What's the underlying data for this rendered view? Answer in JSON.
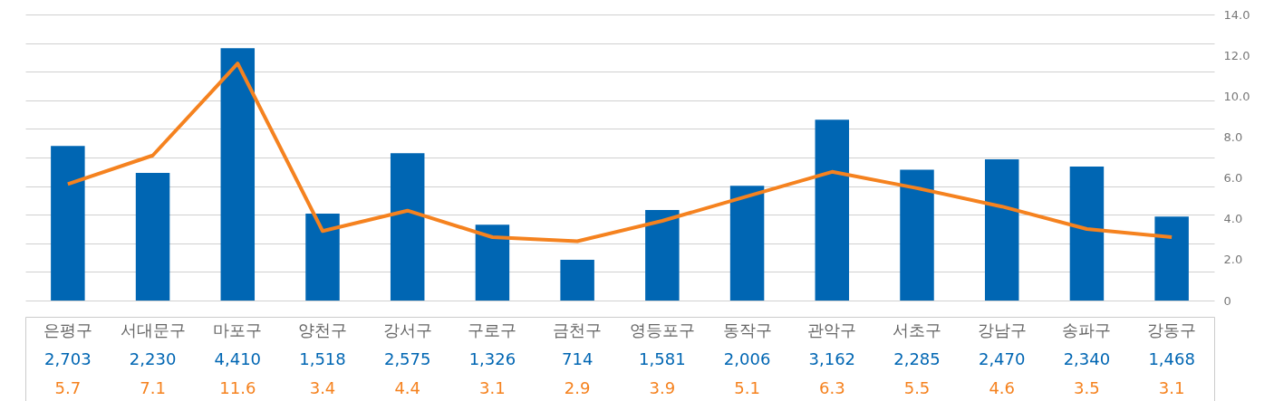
{
  "chart_data": {
    "type": "bar",
    "categories": [
      "은평구",
      "서대문구",
      "마포구",
      "양천구",
      "강서구",
      "구로구",
      "금천구",
      "영등포구",
      "동작구",
      "관악구",
      "서초구",
      "강남구",
      "송파구",
      "강동구"
    ],
    "series": [
      {
        "color": "#0066b3",
        "values": [
          2703,
          2230,
          4410,
          1518,
          2575,
          1326,
          714,
          1581,
          2006,
          3162,
          2285,
          2470,
          2340,
          1468
        ],
        "value_labels": [
          "2,703",
          "2,230",
          "4,410",
          "1,518",
          "2,575",
          "1,326",
          "714",
          "1,581",
          "2,006",
          "3,162",
          "2,285",
          "2,470",
          "2,340",
          "1,468"
        ]
      },
      {
        "type": "line",
        "axis": "y2",
        "color": "#f5821f",
        "values": [
          5.7,
          7.1,
          11.6,
          3.4,
          4.4,
          3.1,
          2.9,
          3.9,
          5.1,
          6.3,
          5.5,
          4.6,
          3.5,
          3.1
        ],
        "value_labels": [
          "5.7",
          "7.1",
          "11.6",
          "3.4",
          "4.4",
          "3.1",
          "2.9",
          "3.9",
          "5.1",
          "6.3",
          "5.5",
          "4.6",
          "3.5",
          "3.1"
        ]
      }
    ],
    "ylim": [
      0,
      5000
    ],
    "yticks": [
      {
        "value": 0,
        "label": null
      },
      {
        "value": 500,
        "label": null
      },
      {
        "value": 1000,
        "label": null
      },
      {
        "value": 1500,
        "label": null
      },
      {
        "value": 2000,
        "label": null
      },
      {
        "value": 2500,
        "label": null
      },
      {
        "value": 3000,
        "label": null
      },
      {
        "value": 3500,
        "label": null
      },
      {
        "value": 4000,
        "label": null
      },
      {
        "value": 4500,
        "label": null
      },
      {
        "value": 5000,
        "label": null
      }
    ],
    "y2lim": [
      0,
      14
    ],
    "y2ticks": [
      0,
      {
        "value": 2,
        "label": "2.0"
      },
      {
        "value": 4,
        "label": "4.0"
      },
      {
        "value": 6,
        "label": "6.0"
      },
      {
        "value": 8,
        "label": "8.0"
      },
      {
        "value": 10,
        "label": "10.0"
      },
      {
        "value": 12,
        "label": "12.0"
      },
      {
        "value": 14,
        "label": "14.0"
      }
    ],
    "grid": "y"
  }
}
